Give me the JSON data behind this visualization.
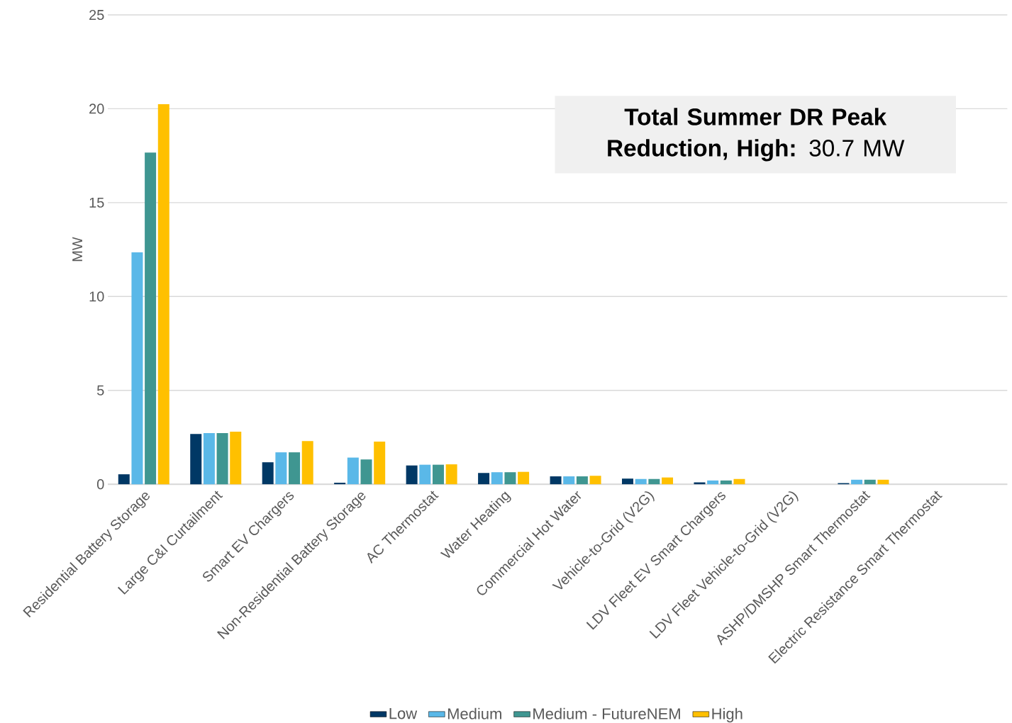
{
  "chart_data": {
    "type": "bar",
    "ylabel": "MW",
    "categories": [
      "Residential Battery Storage",
      "Large C&I Curtailment",
      "Smart EV Chargers",
      "Non-Residential Battery Storage",
      "AC Thermostat",
      "Water Heating",
      "Commercial Hot Water",
      "Vehicle-to-Grid (V2G)",
      "LDV Fleet EV Smart Chargers",
      "LDV Fleet Vehicle-to-Grid (V2G)",
      "ASHP/DMSHP Smart Thermostat",
      "Electric Resistance Smart Thermostat"
    ],
    "series": [
      {
        "name": "Low",
        "color": "#003865",
        "values": [
          0.53,
          2.68,
          1.17,
          0.08,
          1.0,
          0.6,
          0.42,
          0.3,
          0.1,
          0,
          0.06,
          0
        ]
      },
      {
        "name": "Medium",
        "color": "#5ab8e8",
        "values": [
          12.35,
          2.72,
          1.7,
          1.42,
          1.04,
          0.64,
          0.42,
          0.28,
          0.2,
          0,
          0.24,
          0
        ]
      },
      {
        "name": "Medium - FutureNEM",
        "color": "#3f9691",
        "values": [
          17.67,
          2.72,
          1.7,
          1.32,
          1.04,
          0.64,
          0.42,
          0.28,
          0.2,
          0,
          0.24,
          0
        ]
      },
      {
        "name": "High",
        "color": "#ffc000",
        "values": [
          20.24,
          2.8,
          2.3,
          2.27,
          1.06,
          0.66,
          0.45,
          0.36,
          0.28,
          0,
          0.24,
          0
        ]
      }
    ],
    "ylim": [
      0,
      25
    ],
    "yticks": [
      0,
      5,
      10,
      15,
      20,
      25
    ],
    "grid": "y",
    "legend": "bottom",
    "annotations": [
      "**Total Summer DR Peak Reduction, High:** 30.7 MW"
    ]
  }
}
